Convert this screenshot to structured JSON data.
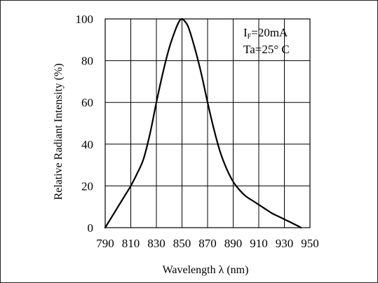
{
  "chart_data": {
    "type": "line",
    "title": "",
    "xlabel": "Wavelength λ (nm)",
    "ylabel": "Relative Radiant Intensity (%)",
    "xlim": [
      790,
      950
    ],
    "ylim": [
      0,
      100
    ],
    "x_ticks": [
      "790",
      "810",
      "830",
      "850",
      "870",
      "890",
      "910",
      "930",
      "950"
    ],
    "y_ticks": [
      "0",
      "20",
      "40",
      "60",
      "80",
      "100"
    ],
    "grid": true,
    "annotations": [
      {
        "main": "I",
        "sub": "F",
        "rest": "=20mA"
      },
      {
        "text": "Ta=25° C"
      }
    ],
    "series": [
      {
        "x": [
          790,
          795,
          800,
          805,
          810,
          815,
          820,
          825,
          830,
          835,
          840,
          845,
          848,
          850,
          852,
          855,
          860,
          865,
          870,
          875,
          880,
          885,
          890,
          895,
          900,
          905,
          910,
          915,
          920,
          925,
          930,
          935,
          940,
          943
        ],
        "y": [
          0,
          5,
          10,
          15,
          20,
          26,
          33,
          45,
          60,
          74,
          86,
          95,
          99,
          100,
          99,
          96,
          86,
          74,
          60,
          47,
          36,
          28,
          22,
          18,
          15,
          13,
          11,
          9,
          7,
          5.5,
          4,
          2.5,
          1,
          0
        ]
      }
    ]
  }
}
